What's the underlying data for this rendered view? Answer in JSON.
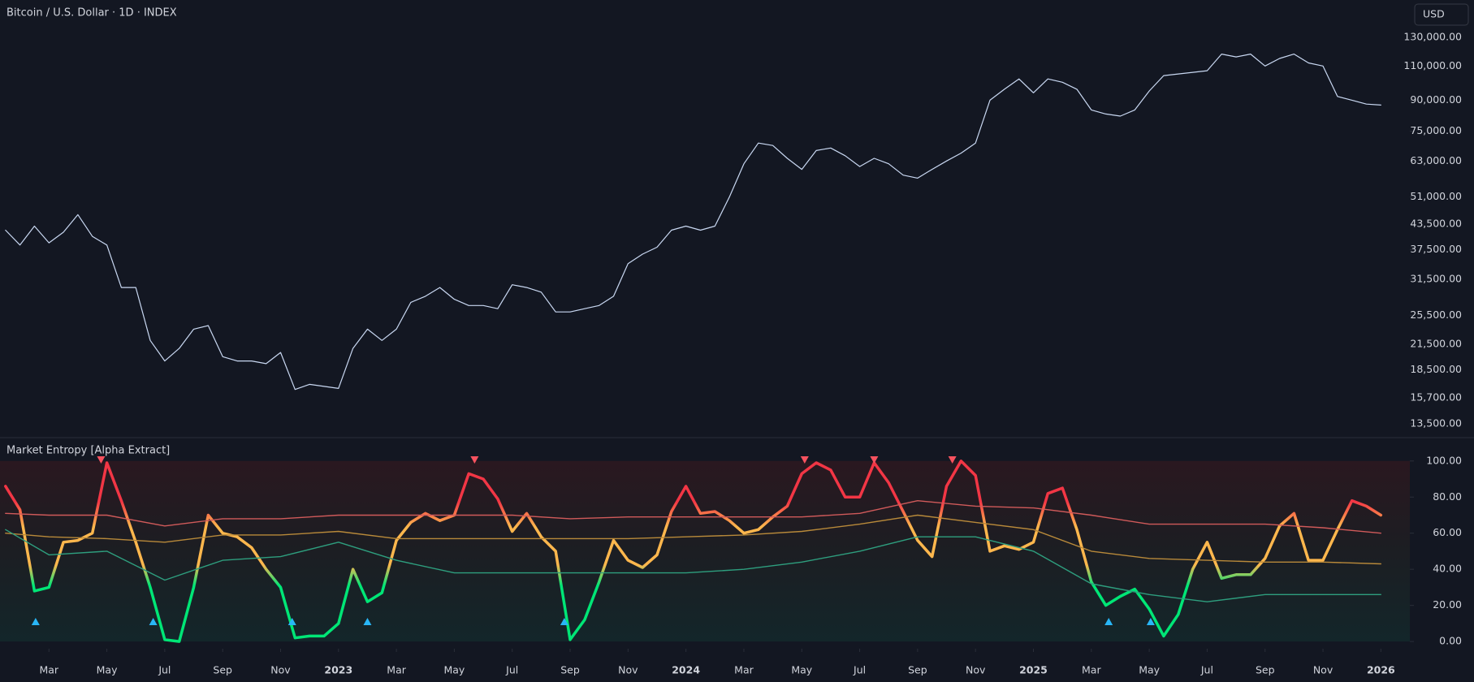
{
  "chart_data": [
    {
      "type": "line",
      "title": "Bitcoin / U.S. Dollar · 1D · INDEX",
      "currency_button": "USD",
      "x": [
        0.5,
        1,
        1.5,
        2,
        2.5,
        3,
        3.5,
        4,
        4.5,
        5,
        5.5,
        6,
        6.5,
        7,
        7.5,
        8,
        8.5,
        9,
        9.5,
        10,
        10.5,
        11,
        11.5,
        12,
        12.5,
        13,
        13.5,
        14,
        14.5,
        15,
        15.5,
        16,
        16.5,
        17,
        17.5,
        18,
        18.5,
        19,
        19.5,
        20,
        20.5,
        21,
        21.5,
        22,
        22.5,
        23,
        23.5,
        24,
        24.5,
        25,
        25.5,
        26,
        26.5,
        27,
        27.5,
        28,
        28.5,
        29,
        29.5,
        30,
        30.5,
        31,
        31.5,
        32,
        32.5,
        33,
        33.5,
        34,
        34.5,
        35,
        35.5,
        36,
        36.5,
        37,
        37.5,
        38,
        38.5,
        39,
        39.5,
        40,
        40.5,
        41,
        41.5,
        42,
        42.5,
        43,
        43.5,
        44,
        44.5,
        45,
        45.5,
        46,
        46.5,
        47,
        47.5,
        48
      ],
      "series": [
        {
          "color": "#c9d8f2",
          "values": [
            42000,
            38500,
            43000,
            39000,
            41500,
            46000,
            40500,
            38500,
            30000,
            30000,
            22000,
            19500,
            21000,
            23500,
            24000,
            20000,
            19500,
            19500,
            19200,
            20500,
            16500,
            17000,
            16800,
            16600,
            21000,
            23500,
            22000,
            23500,
            27500,
            28500,
            30000,
            28000,
            27000,
            27000,
            26500,
            30500,
            30000,
            29200,
            26000,
            26000,
            26500,
            27000,
            28500,
            34500,
            36500,
            38000,
            42000,
            43000,
            42000,
            43000,
            51000,
            62000,
            70000,
            69000,
            64000,
            60000,
            67000,
            68000,
            65000,
            61000,
            64000,
            62000,
            58000,
            57000,
            60000,
            63000,
            66000,
            70000,
            90000,
            96000,
            102000,
            94000,
            102000,
            100000,
            96000,
            85000,
            83000,
            82000,
            85000,
            95000,
            104000,
            105000,
            106000,
            107000,
            118000,
            116000,
            118000,
            110000,
            115000,
            118000,
            112000,
            110000,
            92000,
            90000,
            88000,
            87500
          ]
        }
      ],
      "xlim": [
        0.31,
        49
      ],
      "ylim": [
        12500,
        162000
      ],
      "log": true,
      "yticks": [
        {
          "value": 130000,
          "label": "130,000.00"
        },
        {
          "value": 110000,
          "label": "110,000.00"
        },
        {
          "value": 90000,
          "label": "90,000.00"
        },
        {
          "value": 75000,
          "label": "75,000.00"
        },
        {
          "value": 63000,
          "label": "63,000.00"
        },
        {
          "value": 51000,
          "label": "51,000.00"
        },
        {
          "value": 43500,
          "label": "43,500.00"
        },
        {
          "value": 37500,
          "label": "37,500.00"
        },
        {
          "value": 31500,
          "label": "31,500.00"
        },
        {
          "value": 25500,
          "label": "25,500.00"
        },
        {
          "value": 21500,
          "label": "21,500.00"
        },
        {
          "value": 18500,
          "label": "18,500.00"
        },
        {
          "value": 15700,
          "label": "15,700.00"
        },
        {
          "value": 13500,
          "label": "13,500.00"
        }
      ]
    },
    {
      "type": "line",
      "title": "Market Entropy [Alpha Extract]",
      "x": [
        0.5,
        1,
        1.5,
        2,
        2.5,
        3,
        3.5,
        4,
        4.5,
        5,
        5.5,
        6,
        6.5,
        7,
        7.5,
        8,
        8.5,
        9,
        9.5,
        10,
        10.5,
        11,
        11.5,
        12,
        12.5,
        13,
        13.5,
        14,
        14.5,
        15,
        15.5,
        16,
        16.5,
        17,
        17.5,
        18,
        18.5,
        19,
        19.5,
        20,
        20.5,
        21,
        21.5,
        22,
        22.5,
        23,
        23.5,
        24,
        24.5,
        25,
        25.5,
        26,
        26.5,
        27,
        27.5,
        28,
        28.5,
        29,
        29.5,
        30,
        30.5,
        31,
        31.5,
        32,
        32.5,
        33,
        33.5,
        34,
        34.5,
        35,
        35.5,
        36,
        36.5,
        37,
        37.5,
        38,
        38.5,
        39,
        39.5,
        40,
        40.5,
        41,
        41.5,
        42,
        42.5,
        43,
        43.5,
        44,
        44.5,
        45,
        45.5,
        46,
        46.5,
        47,
        47.5,
        48
      ],
      "series": [
        {
          "colors": {
            "high": "#f23645",
            "mid": "#ffb74d",
            "low": "#00e676"
          },
          "values": [
            86,
            73,
            28,
            30,
            55,
            56,
            60,
            99,
            78,
            55,
            30,
            1,
            0,
            30,
            70,
            60,
            58,
            52,
            40,
            30,
            2,
            3,
            3,
            10,
            40,
            22,
            27,
            56,
            66,
            71,
            67,
            70,
            93,
            90,
            79,
            61,
            71,
            58,
            50,
            1,
            12,
            33,
            56,
            45,
            41,
            48,
            72,
            86,
            71,
            72,
            67,
            60,
            62,
            69,
            75,
            93,
            99,
            95,
            80,
            80,
            99,
            88,
            72,
            56,
            47,
            86,
            100,
            92,
            50,
            53,
            51,
            55,
            82,
            85,
            62,
            33,
            20,
            25,
            29,
            18,
            3,
            15,
            40,
            55,
            35,
            37,
            37,
            46,
            64,
            71,
            45,
            45,
            62,
            78,
            75,
            70
          ]
        },
        {
          "color": "#d05a5a",
          "x": [
            0.5,
            2,
            4,
            6,
            8,
            10,
            12,
            14,
            16,
            18,
            20,
            22,
            24,
            26,
            28,
            30,
            32,
            34,
            36,
            38,
            40,
            42,
            44,
            46,
            48
          ],
          "values": [
            71,
            70,
            70,
            64,
            68,
            68,
            70,
            70,
            70,
            70,
            68,
            69,
            69,
            69,
            69,
            71,
            78,
            75,
            74,
            70,
            65,
            65,
            65,
            63,
            60
          ]
        },
        {
          "color": "#b8893a",
          "x": [
            0.5,
            2,
            4,
            6,
            8,
            10,
            12,
            14,
            16,
            18,
            20,
            22,
            24,
            26,
            28,
            30,
            32,
            34,
            36,
            38,
            40,
            42,
            44,
            46,
            48
          ],
          "values": [
            60,
            58,
            57,
            55,
            59,
            59,
            61,
            57,
            57,
            57,
            57,
            57,
            58,
            59,
            61,
            65,
            70,
            66,
            62,
            50,
            46,
            45,
            44,
            44,
            43
          ]
        },
        {
          "color": "#2e9e7e",
          "x": [
            0.5,
            2,
            4,
            6,
            8,
            10,
            12,
            14,
            16,
            18,
            20,
            22,
            24,
            26,
            28,
            30,
            32,
            34,
            36,
            38,
            40,
            42,
            44,
            46,
            48
          ],
          "values": [
            62,
            48,
            50,
            34,
            45,
            47,
            55,
            45,
            38,
            38,
            38,
            38,
            38,
            40,
            44,
            50,
            58,
            58,
            50,
            32,
            26,
            22,
            26,
            26,
            26
          ]
        }
      ],
      "signals": {
        "buy": {
          "color": "#29b6f6",
          "x": [
            1.54,
            5.6,
            10.4,
            13.0,
            19.8,
            38.6,
            40.05
          ]
        },
        "sell": {
          "color": "#f7525f",
          "x": [
            3.8,
            16.7,
            28.1,
            30.5,
            33.2
          ]
        }
      },
      "xlim": [
        0.31,
        49
      ],
      "ylim": [
        -4,
        112.5
      ],
      "yticks": [
        {
          "value": 100,
          "label": "100.00"
        },
        {
          "value": 80,
          "label": "80.00"
        },
        {
          "value": 60,
          "label": "60.00"
        },
        {
          "value": 40,
          "label": "40.00"
        },
        {
          "value": 20,
          "label": "20.00"
        },
        {
          "value": 0,
          "label": "0.00"
        }
      ],
      "xticks": [
        {
          "value": 2,
          "label": "Mar"
        },
        {
          "value": 4,
          "label": "May"
        },
        {
          "value": 6,
          "label": "Jul"
        },
        {
          "value": 8,
          "label": "Sep"
        },
        {
          "value": 10,
          "label": "Nov"
        },
        {
          "value": 12,
          "label": "2023"
        },
        {
          "value": 14,
          "label": "Mar"
        },
        {
          "value": 16,
          "label": "May"
        },
        {
          "value": 18,
          "label": "Jul"
        },
        {
          "value": 20,
          "label": "Sep"
        },
        {
          "value": 22,
          "label": "Nov"
        },
        {
          "value": 24,
          "label": "2024"
        },
        {
          "value": 26,
          "label": "Mar"
        },
        {
          "value": 28,
          "label": "May"
        },
        {
          "value": 30,
          "label": "Jul"
        },
        {
          "value": 32,
          "label": "Sep"
        },
        {
          "value": 34,
          "label": "Nov"
        },
        {
          "value": 36,
          "label": "2025"
        },
        {
          "value": 38,
          "label": "Mar"
        },
        {
          "value": 40,
          "label": "May"
        },
        {
          "value": 42,
          "label": "Jul"
        },
        {
          "value": 44,
          "label": "Sep"
        },
        {
          "value": 46,
          "label": "Nov"
        },
        {
          "value": 48,
          "label": "2026"
        }
      ]
    }
  ]
}
